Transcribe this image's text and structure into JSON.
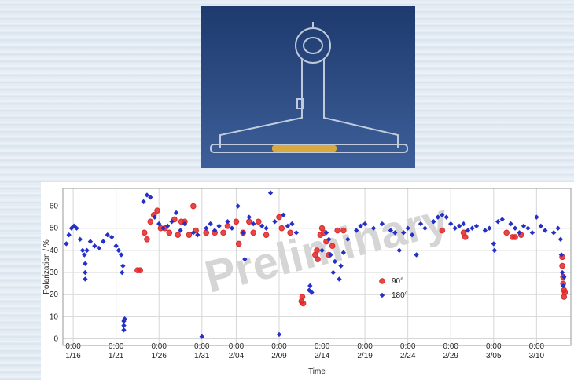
{
  "chart_data": {
    "type": "scatter",
    "watermark": "Preliminary",
    "x_label": "Time",
    "y_label": "Polarization / %",
    "xlim": [
      14.8,
      74
    ],
    "ylim": [
      -3,
      68
    ],
    "xticks": [
      {
        "value": 16,
        "label": "0:00\n1/16"
      },
      {
        "value": 21,
        "label": "0:00\n1/21"
      },
      {
        "value": 26,
        "label": "0:00\n1/26"
      },
      {
        "value": 31,
        "label": "0:00\n1/31"
      },
      {
        "value": 35,
        "label": "0:00\n2/04"
      },
      {
        "value": 40,
        "label": "0:00\n2/09"
      },
      {
        "value": 45,
        "label": "0:00\n2/14"
      },
      {
        "value": 50,
        "label": "0:00\n2/19"
      },
      {
        "value": 55,
        "label": "0:00\n2/24"
      },
      {
        "value": 60,
        "label": "0:00\n2/29"
      },
      {
        "value": 65,
        "label": "0:00\n3/05"
      },
      {
        "value": 70,
        "label": "0:00\n3/10"
      }
    ],
    "yticks": [
      0,
      10,
      20,
      30,
      40,
      50,
      60
    ],
    "grid": true,
    "legend_position": "center-right",
    "series": [
      {
        "name": "90°",
        "color": "#e02828",
        "marker": "circle",
        "x": [
          23.5,
          23.8,
          24.3,
          24.6,
          25,
          25.4,
          25.8,
          26.2,
          26.7,
          27.2,
          27.8,
          28.2,
          28.6,
          29,
          29.5,
          30,
          30.3,
          31.5,
          32.5,
          33.5,
          34,
          35,
          35.3,
          35.8,
          36.5,
          37,
          37.6,
          38.5,
          40,
          40.3,
          41.3,
          42.6,
          42.7,
          42.8,
          44.2,
          44.4,
          44.5,
          44.8,
          45,
          45.2,
          45.5,
          45.8,
          46.2,
          46.8,
          47.5,
          59,
          61.5,
          61.7,
          66.5,
          67.2,
          67.5,
          68.2,
          73,
          73,
          73.1,
          73.1,
          73.2,
          73.2,
          73.3
        ],
        "values": [
          31,
          31,
          48,
          45,
          53,
          56,
          58,
          50,
          50,
          48,
          54,
          47,
          53,
          53,
          47,
          60,
          49,
          48,
          48,
          48,
          51,
          53,
          43,
          48,
          53,
          48,
          53,
          47,
          55,
          50,
          48,
          17,
          19,
          16,
          38,
          40,
          36,
          47,
          50,
          48,
          44,
          38,
          42,
          49,
          49,
          49,
          48,
          46,
          48,
          46,
          46,
          47,
          37,
          33,
          28,
          25,
          22,
          19,
          21
        ]
      },
      {
        "name": "180°",
        "color": "#2430c8",
        "marker": "diamond",
        "x": [
          15.2,
          15.5,
          15.8,
          16.1,
          16.4,
          16.8,
          17.1,
          17.3,
          17.4,
          17.4,
          17.4,
          17.6,
          18,
          18.5,
          19,
          19.5,
          20,
          20.5,
          21,
          21.3,
          21.6,
          21.7,
          21.8,
          21.9,
          21.9,
          21.9,
          22,
          24.2,
          24.6,
          25,
          25.5,
          26,
          26.5,
          27,
          27.5,
          28,
          28.5,
          29,
          30,
          30.5,
          31,
          31.5,
          32,
          32.5,
          33,
          34,
          34.5,
          35.2,
          35.8,
          36,
          36.5,
          37,
          38,
          38.5,
          39,
          39.5,
          40,
          40.5,
          41,
          41.5,
          42,
          43.5,
          43.6,
          43.8,
          45,
          45.5,
          45.8,
          46,
          46.3,
          46.5,
          47,
          47.2,
          47.5,
          48,
          49,
          49.5,
          50,
          51,
          52,
          53,
          53.5,
          54,
          54.5,
          55,
          55.5,
          56,
          56.5,
          57,
          58,
          58.5,
          59,
          59.5,
          60,
          60.5,
          61,
          61.5,
          62,
          62.5,
          63,
          64,
          64.5,
          65,
          65.1,
          65.5,
          66,
          67,
          67.5,
          68,
          68.5,
          69,
          69.5,
          70,
          70.5,
          71,
          72,
          72.5,
          72.8,
          72.9,
          73,
          73.1,
          73.2
        ],
        "values": [
          43,
          47,
          50,
          51,
          50,
          45,
          40,
          38,
          34,
          30,
          27,
          40,
          44,
          42,
          41,
          44,
          47,
          46,
          42,
          40,
          38,
          30,
          33,
          8,
          6,
          4,
          9,
          62,
          65,
          64,
          55,
          52,
          50,
          51,
          53,
          57,
          49,
          52,
          48,
          47,
          1,
          50,
          52,
          49,
          51,
          53,
          50,
          60,
          48,
          36,
          55,
          52,
          51,
          50,
          66,
          53,
          2,
          56,
          51,
          52,
          48,
          22,
          24,
          21,
          40,
          48,
          45,
          38,
          30,
          35,
          27,
          33,
          39,
          45,
          49,
          51,
          52,
          50,
          52,
          49,
          48,
          40,
          48,
          50,
          47,
          38,
          52,
          50,
          53,
          55,
          56,
          55,
          52,
          50,
          51,
          52,
          49,
          50,
          51,
          49,
          50,
          43,
          40,
          53,
          54,
          52,
          50,
          48,
          51,
          50,
          48,
          55,
          51,
          49,
          48,
          50,
          45,
          38,
          30,
          24,
          28
        ]
      }
    ]
  }
}
